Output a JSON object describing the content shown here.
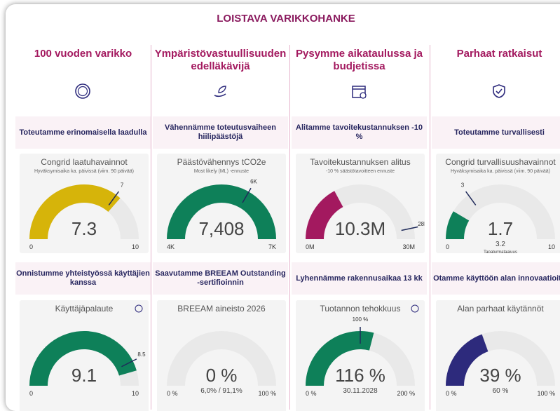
{
  "title": "LOISTAVA VARIKKOHANKE",
  "columns": [
    {
      "heading": "100 vuoden varikko",
      "icon": "badge",
      "goals": [
        {
          "text": "Toteutamme erinomaisella laadulla",
          "card": {
            "title": "Congrid laatuhavainnot",
            "subtitle": "Hyväksymisaika ka. päivissä (viim. 90 päivää)",
            "value": 7.3,
            "min": 0,
            "max": 10,
            "target": 7,
            "color": "#d6b40a"
          }
        },
        {
          "text": "Onnistumme yhteistyössä käyttäjien kanssa",
          "card": {
            "title": "Käyttäjäpalaute",
            "info": true,
            "value": 9.1,
            "min": 0,
            "max": 10,
            "target": 8.5,
            "color": "#0e8059"
          }
        }
      ]
    },
    {
      "heading": "Ympäristövastuullisuuden edelläkävijä",
      "icon": "leaf",
      "goals": [
        {
          "text": "Vähennämme toteutusvaiheen hiilipäästöjä",
          "card": {
            "title": "Päästövähennys tCO2e",
            "subtitle": "Most likely (ML) -ennuste",
            "value": 7408,
            "value_label": "7,408",
            "min": {
              "value": 4000,
              "label": "4K"
            },
            "max": {
              "value": 7000,
              "label": "7K"
            },
            "target": {
              "value": 6000,
              "label": "6K"
            },
            "color": "#0e8059"
          }
        },
        {
          "text": "Saavutamme BREEAM Outstanding -sertifioinnin",
          "card": {
            "title": "BREEAM aineisto 2026",
            "value": 0,
            "value_label": "0 %",
            "min": {
              "value": 0,
              "label": "0 %"
            },
            "max": {
              "value": 100,
              "label": "100 %"
            },
            "note": "6,0% / 91,1%",
            "color": "#0e8059"
          }
        }
      ]
    },
    {
      "heading": "Pysymme aikataulussa ja budjetissa",
      "icon": "calendar",
      "goals": [
        {
          "text": "Alitamme tavoitekustannuksen -10 %",
          "card": {
            "title": "Tavoitekustannuksen alitus",
            "subtitle": "-10 % säästötavoitteen ennuste",
            "value": 10300000,
            "value_label": "10.3M",
            "min": {
              "value": 0,
              "label": "0M"
            },
            "max": {
              "value": 30000000,
              "label": "30M"
            },
            "target": {
              "value": 28000000,
              "label": "28M"
            },
            "color": "#a3195f"
          }
        },
        {
          "text": "Lyhennämme rakennusaikaa 13 kk",
          "card": {
            "title": "Tuotannon tehokkuus",
            "info": true,
            "value": 116,
            "value_label": "116 %",
            "min": {
              "value": 0,
              "label": "0 %"
            },
            "max": {
              "value": 200,
              "label": "200 %"
            },
            "target": {
              "value": 100,
              "label": "100 %"
            },
            "note": "30.11.2028",
            "color": "#0e8059"
          }
        }
      ]
    },
    {
      "heading": "Parhaat ratkaisut",
      "icon": "shield",
      "goals": [
        {
          "text": "Toteutamme turvallisesti",
          "card": {
            "title": "Congrid turvallisuushavainnot",
            "subtitle": "Hyväksymisaika ka. päivissä (viim. 90 päivää)",
            "value": 1.7,
            "min": 0,
            "max": 10,
            "target": 3,
            "note": "3.2",
            "footnote": "Tapaturmataajuus",
            "color": "#0e8059"
          }
        },
        {
          "text": "Otamme käyttöön alan innovaatioita",
          "card": {
            "title": "Alan parhaat käytännöt",
            "value": 39,
            "value_label": "39 %",
            "min": {
              "value": 0,
              "label": "0 %"
            },
            "max": {
              "value": 100,
              "label": "100 %"
            },
            "note": "60 %",
            "color": "#2d2a7c"
          }
        }
      ]
    }
  ]
}
